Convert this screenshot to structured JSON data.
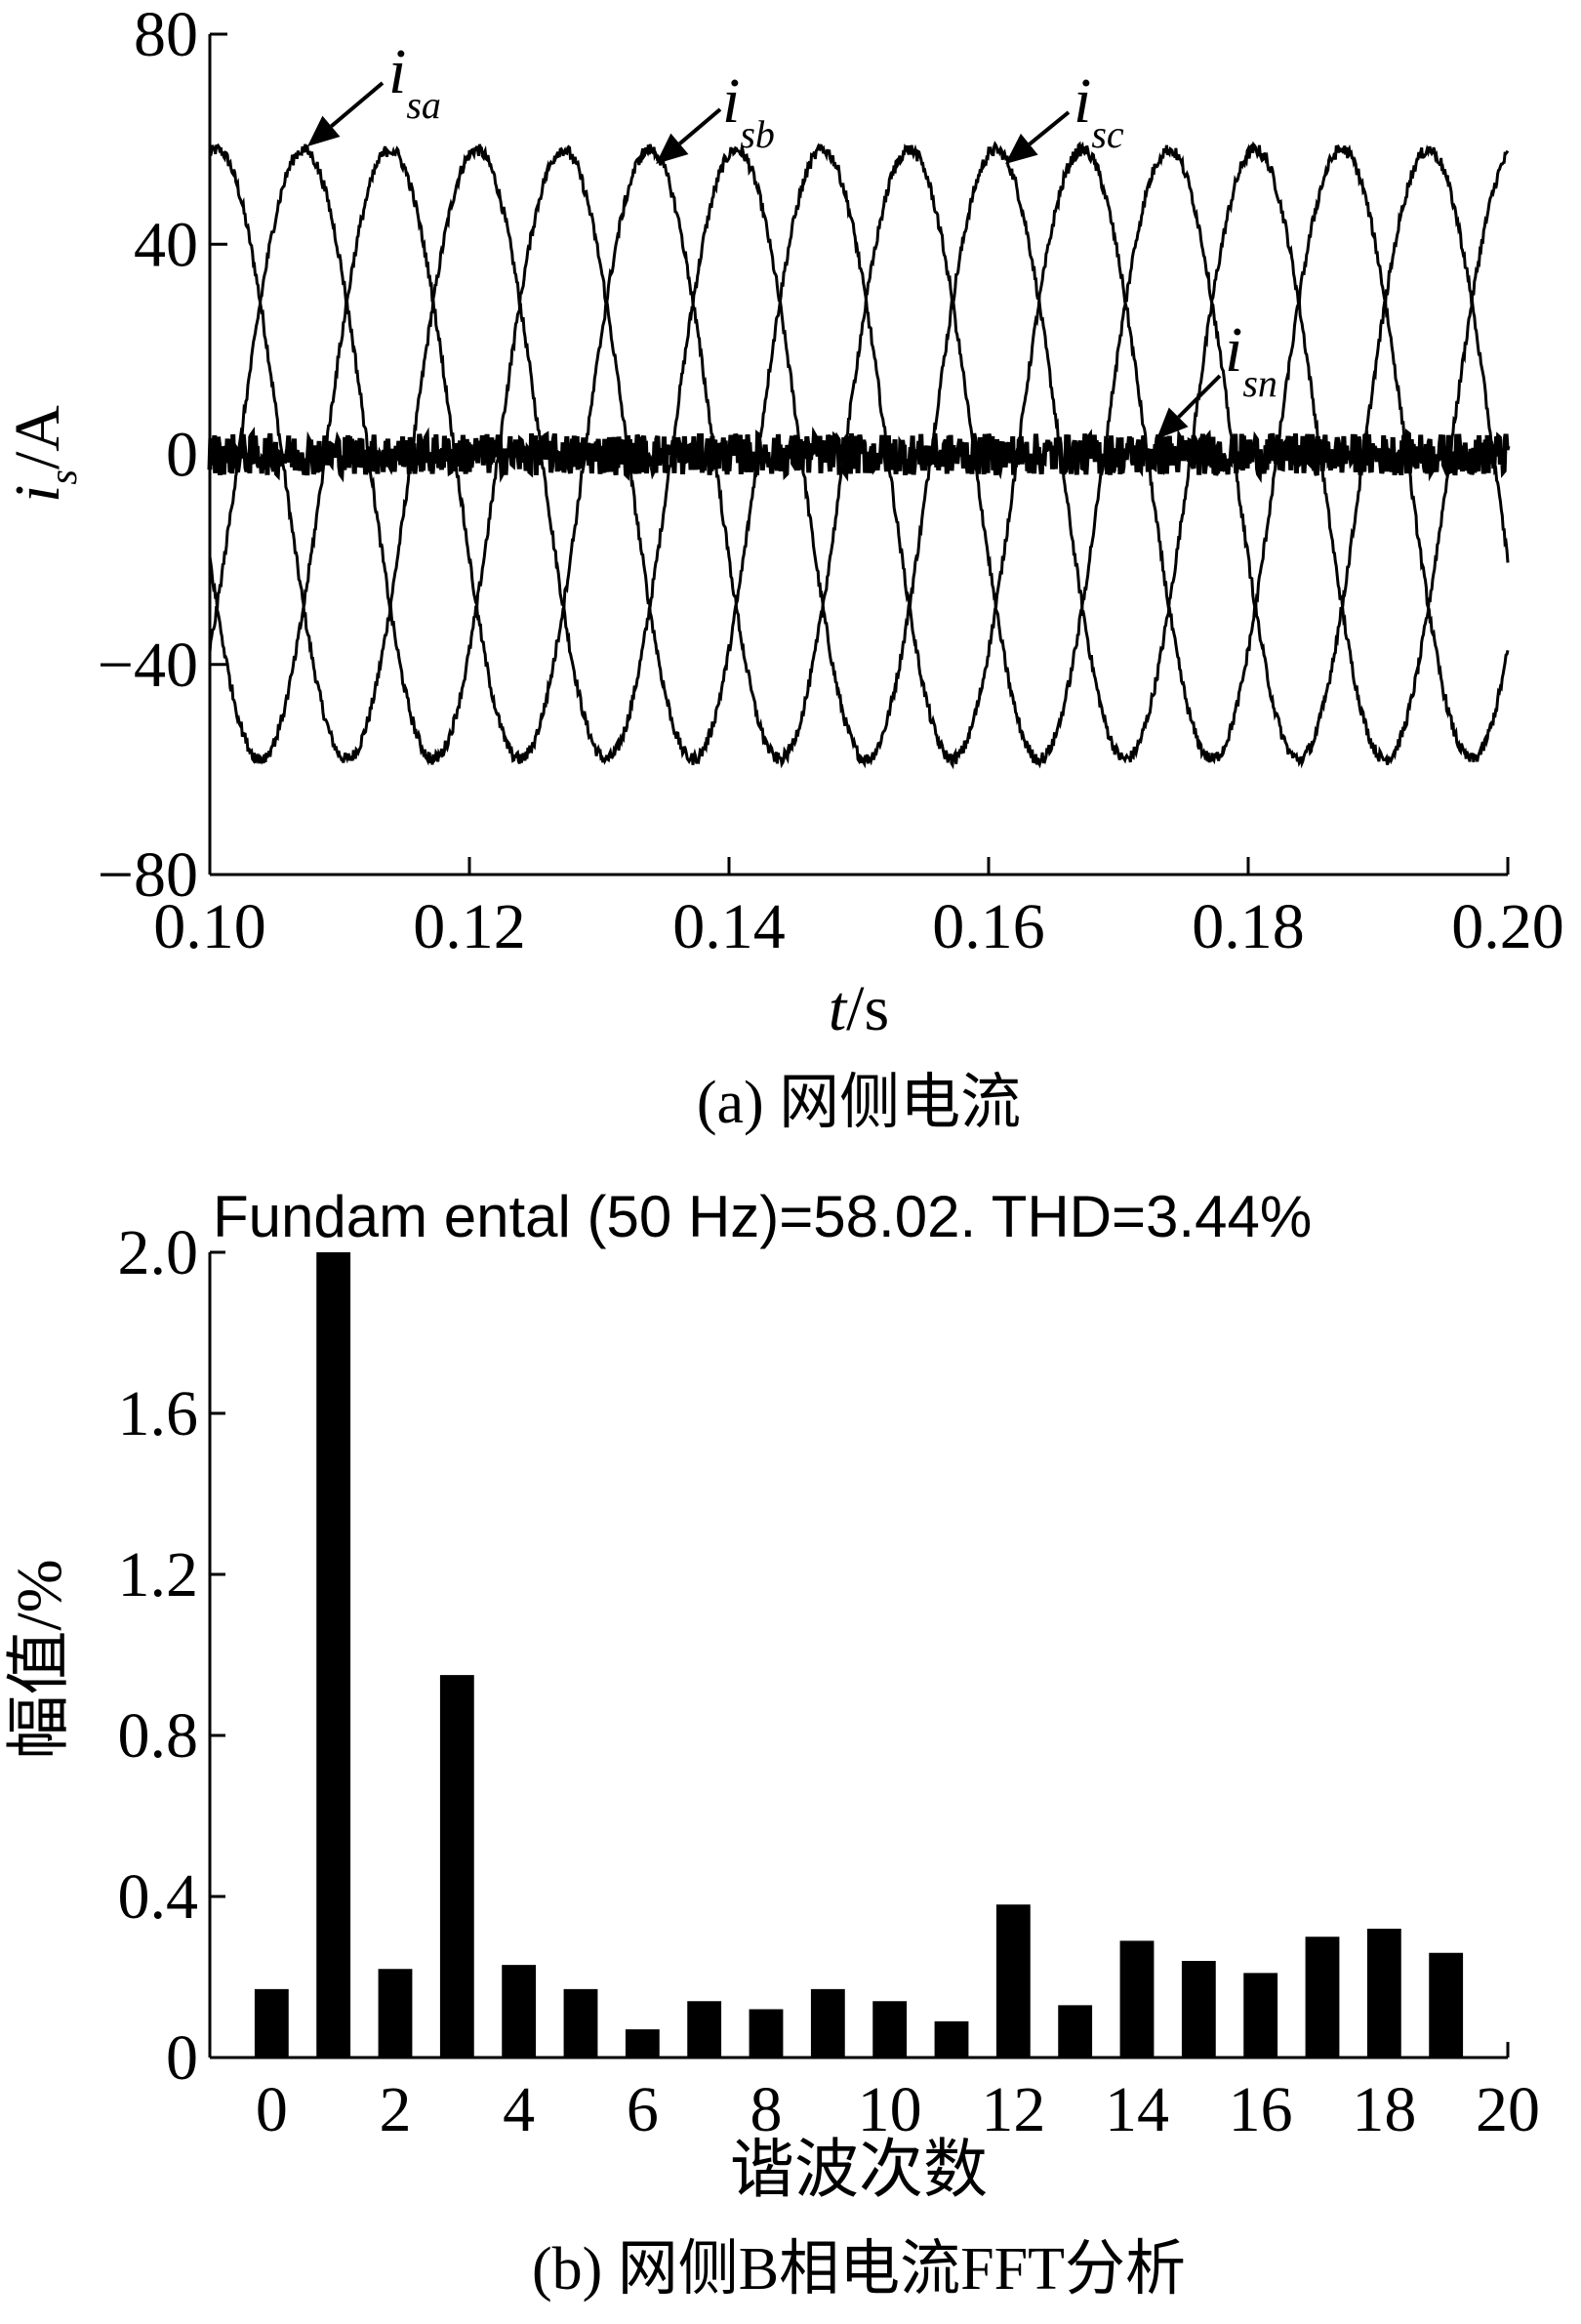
{
  "chart_data": [
    {
      "type": "line",
      "xlabel": "t/s",
      "ylabel": "i_s/A",
      "xlim": [
        0.1,
        0.2
      ],
      "ylim": [
        -80,
        80
      ],
      "xticks": [
        "0.10",
        "0.12",
        "0.14",
        "0.16",
        "0.18",
        "0.20"
      ],
      "yticks": [
        "80",
        "40",
        "0",
        "−40",
        "−80"
      ],
      "frequency_hz": 50,
      "series": [
        {
          "name": "i_sa",
          "main": "i",
          "sub": "sa",
          "amplitude": 58,
          "phase_deg": 0
        },
        {
          "name": "i_sb",
          "main": "i",
          "sub": "sb",
          "amplitude": 58,
          "phase_deg": -120
        },
        {
          "name": "i_sc",
          "main": "i",
          "sub": "sc",
          "amplitude": 58,
          "phase_deg": 120
        },
        {
          "name": "i_sn",
          "main": "i",
          "sub": "sn",
          "amplitude": 0,
          "noise_band": 4
        }
      ],
      "caption": "(a) 网侧电流"
    },
    {
      "type": "bar",
      "title": "Fundam ental (50 Hz)=58.02. THD=3.44%",
      "xlabel": "谐波次数",
      "ylabel": "幅值/%",
      "xlim": [
        -1,
        20
      ],
      "ylim": [
        0,
        2.0
      ],
      "xticks": [
        "0",
        "2",
        "4",
        "6",
        "8",
        "10",
        "12",
        "14",
        "16",
        "18",
        "20"
      ],
      "yticks": [
        "2.0",
        "1.6",
        "1.2",
        "0.8",
        "0.4",
        "0"
      ],
      "categories": [
        0,
        1,
        2,
        3,
        4,
        5,
        6,
        7,
        8,
        9,
        10,
        11,
        12,
        13,
        14,
        15,
        16,
        17,
        18,
        19
      ],
      "values": [
        0.17,
        2.0,
        0.22,
        0.95,
        0.23,
        0.17,
        0.07,
        0.14,
        0.12,
        0.17,
        0.14,
        0.09,
        0.38,
        0.13,
        0.29,
        0.24,
        0.21,
        0.3,
        0.32,
        0.26
      ],
      "caption": "(b) 网侧B相电流FFT分析"
    }
  ]
}
